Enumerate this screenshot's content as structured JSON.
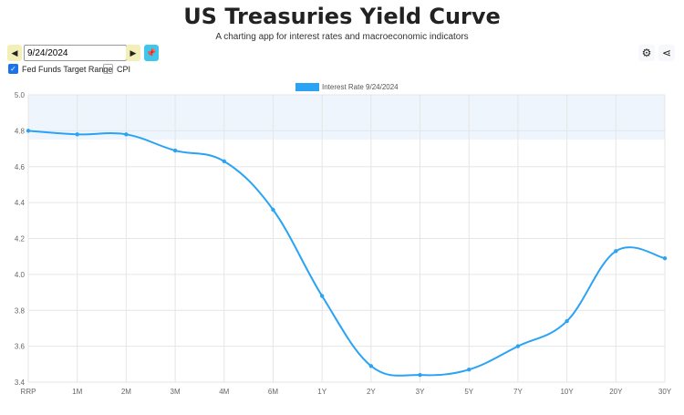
{
  "header": {
    "title": "US Treasuries Yield Curve",
    "subtitle": "A charting app for interest rates and macroeconomic indicators"
  },
  "controls": {
    "date": "9/24/2024",
    "prev_icon": "triangle-left-icon",
    "next_icon": "triangle-right-icon",
    "pin_icon": "pin-icon",
    "settings_icon": "gear-icon",
    "share_icon": "share-icon"
  },
  "toggles": [
    {
      "label": "Fed Funds Target Range",
      "checked": true
    },
    {
      "label": "CPI",
      "checked": false
    }
  ],
  "colors": {
    "line": "#2aa3f5",
    "band": "#eef5fd",
    "pin": "#3fc6ec"
  },
  "chart_data": {
    "type": "line",
    "title": "",
    "legend": [
      "Interest Rate 9/24/2024"
    ],
    "legend_position": "top",
    "categories": [
      "RRP",
      "1M",
      "2M",
      "3M",
      "4M",
      "6M",
      "1Y",
      "2Y",
      "3Y",
      "5Y",
      "7Y",
      "10Y",
      "20Y",
      "30Y"
    ],
    "series": [
      {
        "name": "Interest Rate 9/24/2024",
        "values": [
          4.8,
          4.78,
          4.78,
          4.69,
          4.63,
          4.36,
          3.88,
          3.49,
          3.44,
          3.47,
          3.6,
          3.74,
          4.13,
          4.09
        ]
      }
    ],
    "fed_funds_range": [
      4.75,
      5.0
    ],
    "ylim": [
      3.4,
      5.0
    ],
    "yticks": [
      "3.4",
      "3.6",
      "3.8",
      "4.0",
      "4.2",
      "4.4",
      "4.6",
      "4.8",
      "5.0"
    ],
    "grid": true
  }
}
